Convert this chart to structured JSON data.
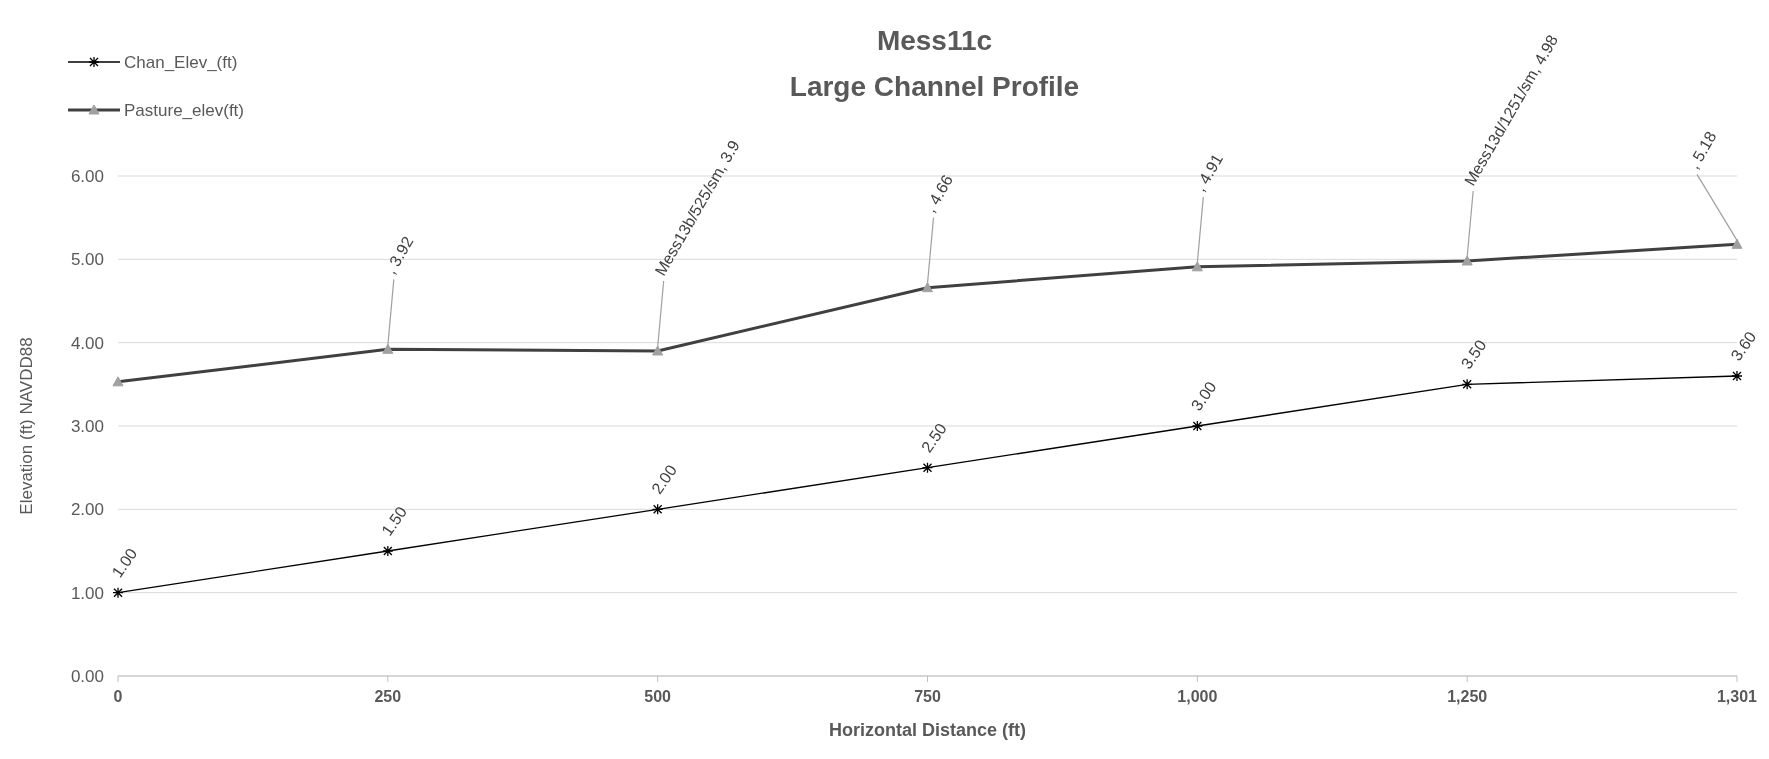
{
  "chart_data": {
    "type": "line",
    "title": "Mess11c",
    "subtitle": "Large Channel Profile",
    "xlabel": "Horizontal  Distance (ft)",
    "ylabel": "Elevation (ft) NAVDD88",
    "categories": [
      "0",
      "250",
      "500",
      "750",
      "1,000",
      "1,250",
      "1,301"
    ],
    "series": [
      {
        "name": "Chan_Elev_(ft)",
        "color": "#000000",
        "marker": "cross",
        "values": [
          1,
          1.5,
          2,
          2.5,
          3,
          3.5,
          3.6
        ],
        "value_labels": [
          "1.00",
          "1.50",
          "2.00",
          "2.50",
          "3.00",
          "3.50",
          "3.60"
        ]
      },
      {
        "name": "Pasture_elev(ft)",
        "color": "#404040",
        "marker": "triangle",
        "values": [
          3.53,
          3.92,
          3.9,
          4.66,
          4.91,
          4.98,
          5.18
        ],
        "value_labels": [
          null,
          ", 3.92",
          "Mess13b/525/sm, 3.9",
          ", 4.66",
          ", 4.91",
          "Mess13d/1251/sm, 4.98",
          ", 5.18"
        ]
      }
    ],
    "ylim": [
      0,
      6
    ],
    "yticks": [
      {
        "value": 0,
        "label": "0.00"
      },
      {
        "value": 1,
        "label": "1.00"
      },
      {
        "value": 2,
        "label": "2.00"
      },
      {
        "value": 3,
        "label": "3.00"
      },
      {
        "value": 4,
        "label": "4.00"
      },
      {
        "value": 5,
        "label": "5.00"
      },
      {
        "value": 6,
        "label": "6.00"
      }
    ],
    "grid": "y",
    "legend": "top left"
  }
}
